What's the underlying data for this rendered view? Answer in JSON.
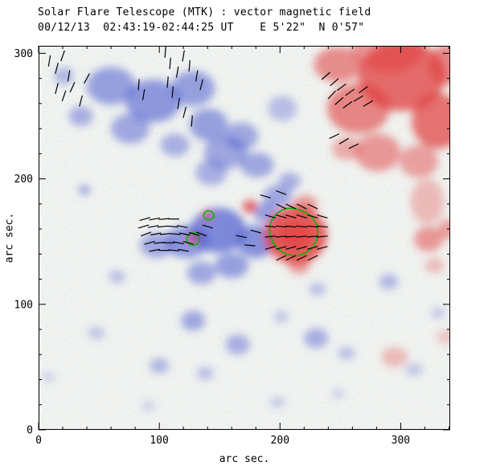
{
  "header": {
    "title": "Solar Flare Telescope (MTK) : vector magnetic field",
    "subtitle": "00/12/13  02:43:19-02:44:25 UT    E 5'22\"  N 0'57\""
  },
  "axes": {
    "xlabel": "arc sec.",
    "ylabel": "arc sec.",
    "x_ticks": [
      "0",
      "100",
      "200",
      "300"
    ],
    "y_ticks": [
      "0",
      "100",
      "200",
      "300"
    ]
  },
  "chart_data": {
    "type": "heatmap",
    "title": "Solar Flare Telescope (MTK) : vector magnetic field",
    "subtitle": "00/12/13  02:43:19-02:44:25 UT    E 5'22\"  N 0'57\"",
    "xlabel": "arc sec.",
    "ylabel": "arc sec.",
    "x_range": [
      0,
      341
    ],
    "y_range": [
      0,
      306
    ],
    "x_major_ticks": [
      0,
      100,
      200,
      300
    ],
    "y_major_ticks": [
      0,
      100,
      200,
      300
    ],
    "minor_tick_step": 20,
    "grid": false,
    "legend": "none",
    "colors": {
      "positive": "#e03c3c",
      "negative": "#4d5cd0",
      "contour": "#00bb00",
      "vector": "#000000",
      "frame": "#000000",
      "background": "#ffffff"
    },
    "polarity_legend": {
      "positive": "red (toward observer)",
      "negative": "blue (away)"
    },
    "vector_length": 9,
    "blobs": [
      {
        "p": "-",
        "x": 60,
        "y": 274,
        "rx": 20,
        "ry": 15,
        "o": 0.55
      },
      {
        "p": "-",
        "x": 95,
        "y": 262,
        "rx": 23,
        "ry": 17,
        "o": 0.6
      },
      {
        "p": "-",
        "x": 128,
        "y": 272,
        "rx": 18,
        "ry": 14,
        "o": 0.55
      },
      {
        "p": "-",
        "x": 76,
        "y": 240,
        "rx": 16,
        "ry": 12,
        "o": 0.5
      },
      {
        "p": "-",
        "x": 141,
        "y": 243,
        "rx": 16,
        "ry": 13,
        "o": 0.55
      },
      {
        "p": "-",
        "x": 168,
        "y": 234,
        "rx": 14,
        "ry": 11,
        "o": 0.5
      },
      {
        "p": "-",
        "x": 35,
        "y": 250,
        "rx": 10,
        "ry": 8,
        "o": 0.45
      },
      {
        "p": "-",
        "x": 21,
        "y": 282,
        "rx": 8,
        "ry": 7,
        "o": 0.4
      },
      {
        "p": "-",
        "x": 113,
        "y": 227,
        "rx": 12,
        "ry": 9,
        "o": 0.45
      },
      {
        "p": "-",
        "x": 155,
        "y": 221,
        "rx": 18,
        "ry": 13,
        "o": 0.5
      },
      {
        "p": "-",
        "x": 181,
        "y": 211,
        "rx": 14,
        "ry": 10,
        "o": 0.5
      },
      {
        "p": "-",
        "x": 143,
        "y": 205,
        "rx": 13,
        "ry": 10,
        "o": 0.45
      },
      {
        "p": "-",
        "x": 202,
        "y": 256,
        "rx": 12,
        "ry": 10,
        "o": 0.35
      },
      {
        "p": "-",
        "x": 149,
        "y": 159,
        "rx": 23,
        "ry": 18,
        "o": 0.7
      },
      {
        "p": "-",
        "x": 180,
        "y": 150,
        "rx": 16,
        "ry": 13,
        "o": 0.65
      },
      {
        "p": "-",
        "x": 123,
        "y": 150,
        "rx": 18,
        "ry": 13,
        "o": 0.6
      },
      {
        "p": "-",
        "x": 98,
        "y": 147,
        "rx": 14,
        "ry": 10,
        "o": 0.5
      },
      {
        "p": "-",
        "x": 160,
        "y": 131,
        "rx": 14,
        "ry": 10,
        "o": 0.55
      },
      {
        "p": "-",
        "x": 135,
        "y": 125,
        "rx": 12,
        "ry": 9,
        "o": 0.5
      },
      {
        "p": "-",
        "x": 198,
        "y": 186,
        "rx": 12,
        "ry": 9,
        "o": 0.5
      },
      {
        "p": "-",
        "x": 208,
        "y": 198,
        "rx": 9,
        "ry": 7,
        "o": 0.45
      },
      {
        "p": "-",
        "x": 188,
        "y": 173,
        "rx": 10,
        "ry": 8,
        "o": 0.55
      },
      {
        "p": "-",
        "x": 38,
        "y": 191,
        "rx": 5,
        "ry": 4,
        "o": 0.5
      },
      {
        "p": "-",
        "x": 128,
        "y": 87,
        "rx": 10,
        "ry": 8,
        "o": 0.5
      },
      {
        "p": "-",
        "x": 165,
        "y": 68,
        "rx": 10,
        "ry": 8,
        "o": 0.45
      },
      {
        "p": "-",
        "x": 100,
        "y": 51,
        "rx": 8,
        "ry": 6,
        "o": 0.4
      },
      {
        "p": "-",
        "x": 138,
        "y": 45,
        "rx": 7,
        "ry": 5,
        "o": 0.35
      },
      {
        "p": "-",
        "x": 230,
        "y": 73,
        "rx": 10,
        "ry": 8,
        "o": 0.45
      },
      {
        "p": "-",
        "x": 255,
        "y": 61,
        "rx": 7,
        "ry": 5,
        "o": 0.35
      },
      {
        "p": "-",
        "x": 290,
        "y": 118,
        "rx": 8,
        "ry": 6,
        "o": 0.4
      },
      {
        "p": "-",
        "x": 231,
        "y": 112,
        "rx": 7,
        "ry": 5,
        "o": 0.35
      },
      {
        "p": "-",
        "x": 201,
        "y": 90,
        "rx": 6,
        "ry": 5,
        "o": 0.3
      },
      {
        "p": "-",
        "x": 65,
        "y": 122,
        "rx": 7,
        "ry": 5,
        "o": 0.35
      },
      {
        "p": "-",
        "x": 48,
        "y": 77,
        "rx": 7,
        "ry": 5,
        "o": 0.3
      },
      {
        "p": "-",
        "x": 311,
        "y": 48,
        "rx": 7,
        "ry": 5,
        "o": 0.3
      },
      {
        "p": "-",
        "x": 198,
        "y": 22,
        "rx": 6,
        "ry": 4,
        "o": 0.3
      },
      {
        "p": "-",
        "x": 248,
        "y": 29,
        "rx": 5,
        "ry": 4,
        "o": 0.25
      },
      {
        "p": "-",
        "x": 91,
        "y": 19,
        "rx": 5,
        "ry": 4,
        "o": 0.25
      },
      {
        "p": "-",
        "x": 331,
        "y": 93,
        "rx": 6,
        "ry": 4,
        "o": 0.3
      },
      {
        "p": "-",
        "x": 8,
        "y": 42,
        "rx": 5,
        "ry": 4,
        "o": 0.25
      },
      {
        "p": "+",
        "x": 301,
        "y": 282,
        "rx": 36,
        "ry": 28,
        "o": 0.75
      },
      {
        "p": "+",
        "x": 265,
        "y": 256,
        "rx": 26,
        "ry": 20,
        "o": 0.6
      },
      {
        "p": "+",
        "x": 331,
        "y": 246,
        "rx": 22,
        "ry": 22,
        "o": 0.7
      },
      {
        "p": "+",
        "x": 281,
        "y": 221,
        "rx": 19,
        "ry": 15,
        "o": 0.5
      },
      {
        "p": "+",
        "x": 315,
        "y": 214,
        "rx": 16,
        "ry": 13,
        "o": 0.45
      },
      {
        "p": "+",
        "x": 248,
        "y": 291,
        "rx": 20,
        "ry": 14,
        "o": 0.55
      },
      {
        "p": "+",
        "x": 338,
        "y": 291,
        "rx": 14,
        "ry": 16,
        "o": 0.6
      },
      {
        "p": "+",
        "x": 255,
        "y": 224,
        "rx": 12,
        "ry": 9,
        "o": 0.4
      },
      {
        "p": "+",
        "x": 290,
        "y": 305,
        "rx": 30,
        "ry": 20,
        "o": 0.5
      },
      {
        "p": "+",
        "x": 322,
        "y": 182,
        "rx": 14,
        "ry": 18,
        "o": 0.3
      },
      {
        "p": "+",
        "x": 213,
        "y": 155,
        "rx": 26,
        "ry": 23,
        "o": 0.8
      },
      {
        "p": "+",
        "x": 213,
        "y": 155,
        "rx": 14,
        "ry": 12,
        "o": 0.6
      },
      {
        "p": "+",
        "x": 221,
        "y": 179,
        "rx": 10,
        "ry": 8,
        "o": 0.5
      },
      {
        "p": "+",
        "x": 216,
        "y": 131,
        "rx": 9,
        "ry": 7,
        "o": 0.45
      },
      {
        "p": "+",
        "x": 175,
        "y": 178,
        "rx": 6,
        "ry": 5,
        "o": 0.8
      },
      {
        "p": "+",
        "x": 140,
        "y": 171,
        "rx": 4,
        "ry": 4,
        "o": 0.7
      },
      {
        "p": "+",
        "x": 128,
        "y": 152,
        "rx": 5,
        "ry": 4,
        "o": 0.7
      },
      {
        "p": "+",
        "x": 323,
        "y": 152,
        "rx": 12,
        "ry": 10,
        "o": 0.5
      },
      {
        "p": "+",
        "x": 339,
        "y": 160,
        "rx": 8,
        "ry": 8,
        "o": 0.45
      },
      {
        "p": "+",
        "x": 328,
        "y": 131,
        "rx": 8,
        "ry": 6,
        "o": 0.3
      },
      {
        "p": "+",
        "x": 295,
        "y": 58,
        "rx": 11,
        "ry": 8,
        "o": 0.3
      },
      {
        "p": "+",
        "x": 338,
        "y": 74,
        "rx": 8,
        "ry": 6,
        "o": 0.25
      }
    ],
    "vectors": [
      [
        9,
        294,
        80
      ],
      [
        15,
        288,
        75
      ],
      [
        20,
        298,
        70
      ],
      [
        25,
        282,
        80
      ],
      [
        15,
        272,
        75
      ],
      [
        21,
        266,
        70
      ],
      [
        28,
        273,
        65
      ],
      [
        35,
        262,
        75
      ],
      [
        40,
        280,
        60
      ],
      [
        83,
        275,
        85
      ],
      [
        87,
        267,
        80
      ],
      [
        105,
        301,
        85
      ],
      [
        109,
        292,
        85
      ],
      [
        115,
        285,
        80
      ],
      [
        107,
        277,
        85
      ],
      [
        111,
        269,
        85
      ],
      [
        116,
        260,
        80
      ],
      [
        121,
        253,
        75
      ],
      [
        127,
        246,
        85
      ],
      [
        120,
        298,
        80
      ],
      [
        125,
        290,
        85
      ],
      [
        131,
        282,
        80
      ],
      [
        135,
        275,
        75
      ],
      [
        238,
        282,
        40
      ],
      [
        245,
        277,
        40
      ],
      [
        251,
        273,
        35
      ],
      [
        258,
        269,
        35
      ],
      [
        243,
        267,
        45
      ],
      [
        249,
        262,
        40
      ],
      [
        256,
        259,
        35
      ],
      [
        265,
        264,
        30
      ],
      [
        269,
        271,
        35
      ],
      [
        273,
        260,
        30
      ],
      [
        245,
        234,
        25
      ],
      [
        253,
        230,
        30
      ],
      [
        261,
        226,
        25
      ],
      [
        88,
        168,
        15
      ],
      [
        96,
        168,
        10
      ],
      [
        104,
        168,
        5
      ],
      [
        112,
        168,
        0
      ],
      [
        87,
        162,
        15
      ],
      [
        95,
        162,
        10
      ],
      [
        103,
        162,
        5
      ],
      [
        111,
        162,
        -5
      ],
      [
        119,
        162,
        -10
      ],
      [
        89,
        156,
        20
      ],
      [
        97,
        156,
        10
      ],
      [
        105,
        156,
        5
      ],
      [
        113,
        156,
        -5
      ],
      [
        121,
        156,
        -10
      ],
      [
        129,
        156,
        -15
      ],
      [
        92,
        149,
        15
      ],
      [
        100,
        149,
        5
      ],
      [
        108,
        149,
        0
      ],
      [
        116,
        149,
        -10
      ],
      [
        124,
        149,
        -15
      ],
      [
        96,
        143,
        10
      ],
      [
        104,
        143,
        0
      ],
      [
        112,
        143,
        -5
      ],
      [
        120,
        143,
        -10
      ],
      [
        135,
        156,
        -20
      ],
      [
        140,
        162,
        -15
      ],
      [
        201,
        178,
        -25
      ],
      [
        209,
        178,
        -25
      ],
      [
        218,
        178,
        -25
      ],
      [
        227,
        178,
        -25
      ],
      [
        192,
        170,
        -15
      ],
      [
        201,
        170,
        -15
      ],
      [
        209,
        170,
        -15
      ],
      [
        218,
        170,
        -15
      ],
      [
        227,
        170,
        -15
      ],
      [
        235,
        170,
        -15
      ],
      [
        192,
        162,
        -5
      ],
      [
        201,
        162,
        -5
      ],
      [
        209,
        162,
        -5
      ],
      [
        218,
        162,
        -5
      ],
      [
        227,
        162,
        -5
      ],
      [
        235,
        162,
        -5
      ],
      [
        192,
        154,
        5
      ],
      [
        201,
        154,
        5
      ],
      [
        209,
        154,
        5
      ],
      [
        218,
        154,
        5
      ],
      [
        227,
        154,
        5
      ],
      [
        235,
        154,
        5
      ],
      [
        192,
        145,
        15
      ],
      [
        201,
        145,
        15
      ],
      [
        209,
        145,
        15
      ],
      [
        218,
        145,
        15
      ],
      [
        227,
        145,
        15
      ],
      [
        235,
        145,
        15
      ],
      [
        201,
        137,
        25
      ],
      [
        209,
        137,
        25
      ],
      [
        218,
        137,
        25
      ],
      [
        227,
        137,
        25
      ],
      [
        168,
        154,
        -10
      ],
      [
        175,
        147,
        -5
      ],
      [
        180,
        158,
        -15
      ],
      [
        188,
        186,
        -15
      ],
      [
        201,
        189,
        -20
      ]
    ],
    "contours": [
      [
        [
          190,
          158
        ],
        [
          194,
          170
        ],
        [
          204,
          177
        ],
        [
          216,
          176
        ],
        [
          227,
          170
        ],
        [
          232,
          160
        ],
        [
          230,
          148
        ],
        [
          221,
          140
        ],
        [
          209,
          138
        ],
        [
          197,
          144
        ]
      ],
      [
        [
          122,
          152
        ],
        [
          125,
          157
        ],
        [
          131,
          157
        ],
        [
          134,
          152
        ],
        [
          131,
          147
        ],
        [
          125,
          147
        ]
      ],
      [
        [
          136,
          171
        ],
        [
          139,
          175
        ],
        [
          144,
          174
        ],
        [
          146,
          170
        ],
        [
          142,
          167
        ],
        [
          138,
          168
        ]
      ]
    ]
  }
}
